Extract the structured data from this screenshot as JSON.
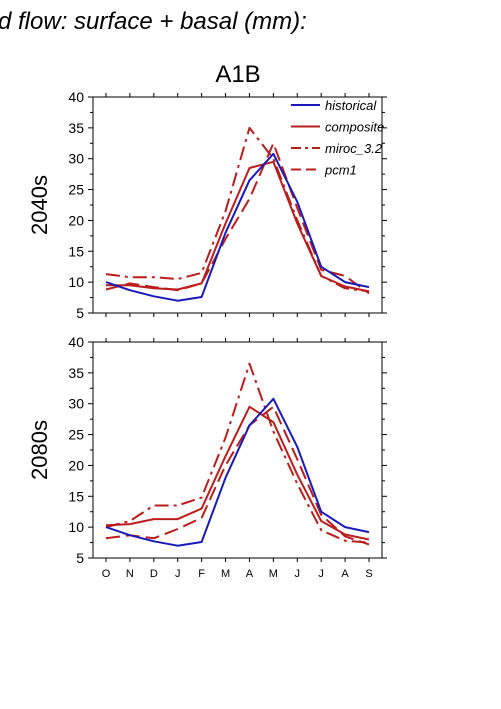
{
  "page_title": "d flow: surface + basal (mm):",
  "scenario": "A1B",
  "colors": {
    "historical": "#1a1ab8",
    "model": "#bb1c1c",
    "axis": "#000000"
  },
  "chart_data": [
    {
      "type": "line",
      "panel_label": "2040s",
      "categories": [
        "O",
        "N",
        "D",
        "J",
        "F",
        "M",
        "A",
        "M",
        "J",
        "J",
        "A",
        "S"
      ],
      "ylim": [
        5,
        40
      ],
      "yticks": [
        5,
        10,
        15,
        20,
        25,
        30,
        35,
        40
      ],
      "legend_position": "top-right",
      "series": [
        {
          "name": "historical",
          "style": "solid",
          "color": "#1a1ab8",
          "values": [
            10.0,
            8.7,
            7.7,
            7.0,
            7.6,
            18.0,
            26.5,
            30.8,
            23.0,
            12.5,
            10.0,
            9.2
          ]
        },
        {
          "name": "composite",
          "style": "solid",
          "color": "#bb1c1c",
          "values": [
            9.5,
            9.5,
            9.0,
            8.8,
            9.8,
            19.5,
            28.5,
            29.5,
            19.5,
            11.0,
            9.3,
            8.5
          ]
        },
        {
          "name": "miroc_3.2",
          "style": "dashdot",
          "color": "#bb1c1c",
          "values": [
            11.3,
            10.8,
            10.8,
            10.5,
            11.5,
            21.5,
            35.0,
            30.0,
            20.0,
            11.0,
            9.0,
            8.5
          ]
        },
        {
          "name": "pcm1",
          "style": "dashed",
          "color": "#bb1c1c",
          "values": [
            8.8,
            9.8,
            9.2,
            8.7,
            9.8,
            17.0,
            23.5,
            32.5,
            22.0,
            12.0,
            11.0,
            8.2
          ]
        }
      ]
    },
    {
      "type": "line",
      "panel_label": "2080s",
      "categories": [
        "O",
        "N",
        "D",
        "J",
        "F",
        "M",
        "A",
        "M",
        "J",
        "J",
        "A",
        "S"
      ],
      "ylim": [
        5,
        40
      ],
      "yticks": [
        5,
        10,
        15,
        20,
        25,
        30,
        35,
        40
      ],
      "series": [
        {
          "name": "historical",
          "style": "solid",
          "color": "#1a1ab8",
          "values": [
            10.0,
            8.7,
            7.7,
            7.0,
            7.6,
            18.0,
            26.5,
            30.8,
            23.0,
            12.5,
            10.0,
            9.2
          ]
        },
        {
          "name": "composite",
          "style": "solid",
          "color": "#bb1c1c",
          "values": [
            10.3,
            10.5,
            11.3,
            11.3,
            13.0,
            21.5,
            29.5,
            27.0,
            18.5,
            11.0,
            8.8,
            8.0
          ]
        },
        {
          "name": "miroc_3.2",
          "style": "dashdot",
          "color": "#bb1c1c",
          "values": [
            10.0,
            11.0,
            13.5,
            13.5,
            14.8,
            24.5,
            36.5,
            25.5,
            17.0,
            9.5,
            7.8,
            7.5
          ]
        },
        {
          "name": "pcm1",
          "style": "dashed",
          "color": "#bb1c1c",
          "values": [
            8.2,
            8.7,
            8.2,
            9.7,
            11.5,
            20.0,
            26.5,
            29.5,
            21.0,
            12.0,
            8.5,
            7.2
          ]
        }
      ]
    }
  ]
}
